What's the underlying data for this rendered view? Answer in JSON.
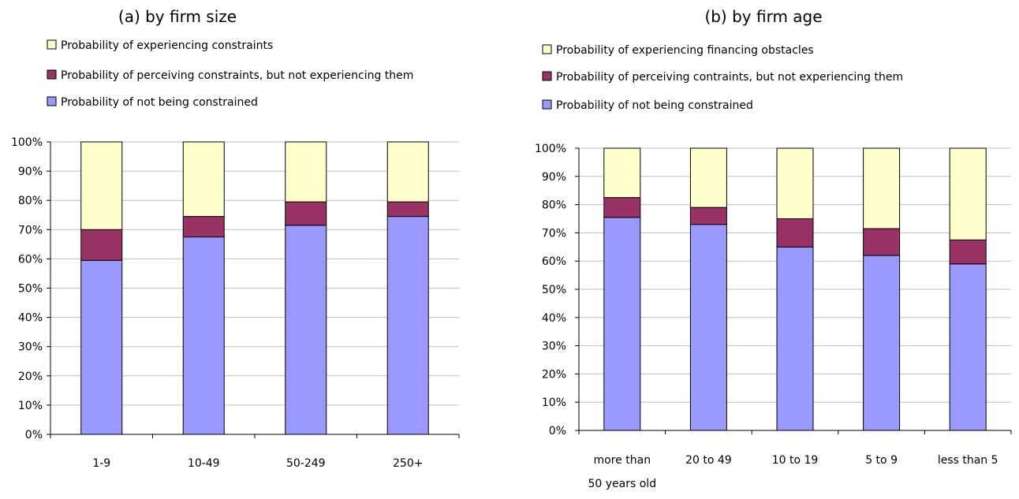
{
  "chart_data": [
    {
      "type": "bar",
      "stacked": true,
      "title": "(a) by firm size",
      "categories": [
        "1-9",
        "10-49",
        "50-249",
        "250+"
      ],
      "series": [
        {
          "name": "Probability of not being constrained",
          "color": "#9999ff",
          "values": [
            59.5,
            67.5,
            71.5,
            74.5
          ]
        },
        {
          "name": "Probability of perceiving constraints, but not experiencing them",
          "color": "#993366",
          "values": [
            10.5,
            7.0,
            8.0,
            5.0
          ]
        },
        {
          "name": "Probability of experiencing constraints",
          "color": "#ffffcc",
          "values": [
            30.0,
            25.5,
            20.5,
            20.5
          ]
        }
      ],
      "ylim": [
        0,
        100
      ],
      "yticks": [
        "0%",
        "10%",
        "20%",
        "30%",
        "40%",
        "50%",
        "60%",
        "70%",
        "80%",
        "90%",
        "100%"
      ],
      "grid": true,
      "legend_position": "top"
    },
    {
      "type": "bar",
      "stacked": true,
      "title": "(b) by firm age",
      "categories": [
        [
          "more than",
          "50 years old"
        ],
        [
          "20 to 49"
        ],
        [
          "10 to 19"
        ],
        [
          "5 to 9"
        ],
        [
          "less than 5"
        ]
      ],
      "series": [
        {
          "name": "Probability of not being constrained",
          "color": "#9999ff",
          "values": [
            75.5,
            73.0,
            65.0,
            62.0,
            59.0
          ]
        },
        {
          "name": "Probability of perceiving contraints, but not experiencing them",
          "color": "#993366",
          "values": [
            7.0,
            6.0,
            10.0,
            9.5,
            8.5
          ]
        },
        {
          "name": "Probability of experiencing financing obstacles",
          "color": "#ffffcc",
          "values": [
            17.5,
            21.0,
            25.0,
            28.5,
            32.5
          ]
        }
      ],
      "ylim": [
        0,
        100
      ],
      "yticks": [
        "0%",
        "10%",
        "20%",
        "30%",
        "40%",
        "50%",
        "60%",
        "70%",
        "80%",
        "90%",
        "100%"
      ],
      "grid": true,
      "legend_position": "top"
    }
  ]
}
